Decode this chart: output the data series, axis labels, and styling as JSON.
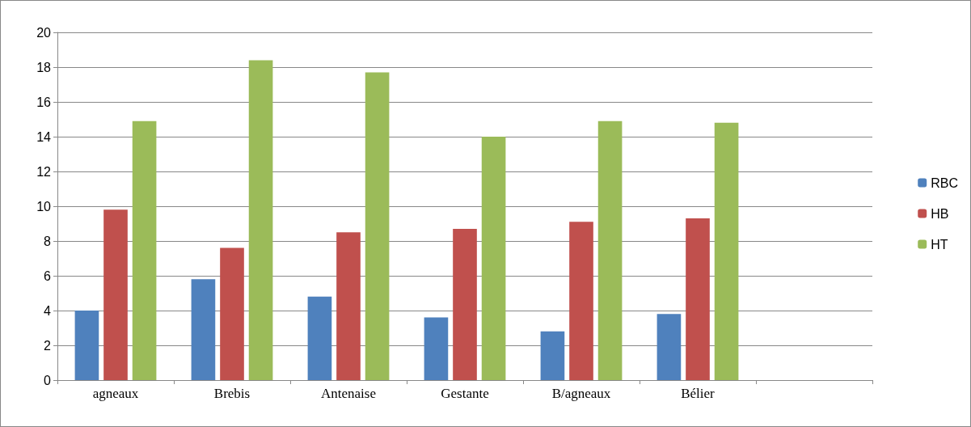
{
  "chart_data": {
    "type": "bar",
    "categories": [
      "agneaux",
      "Brebis",
      "Antenaise",
      "Gestante",
      "B/agneaux",
      "Bélier",
      null
    ],
    "series": [
      {
        "name": "RBC",
        "color": "#4f81bd",
        "values": [
          4.0,
          5.8,
          4.8,
          3.6,
          2.8,
          3.8,
          null
        ]
      },
      {
        "name": "HB",
        "color": "#c0504d",
        "values": [
          9.8,
          7.6,
          8.5,
          8.7,
          9.1,
          9.3,
          null
        ]
      },
      {
        "name": "HT",
        "color": "#9bbb59",
        "values": [
          14.9,
          18.4,
          17.7,
          14.0,
          14.9,
          14.8,
          null
        ]
      }
    ],
    "ylim": [
      0,
      20
    ],
    "yticks": [
      0,
      2,
      4,
      6,
      8,
      10,
      12,
      14,
      16,
      18,
      20
    ],
    "grid": "y",
    "legend": "right"
  }
}
